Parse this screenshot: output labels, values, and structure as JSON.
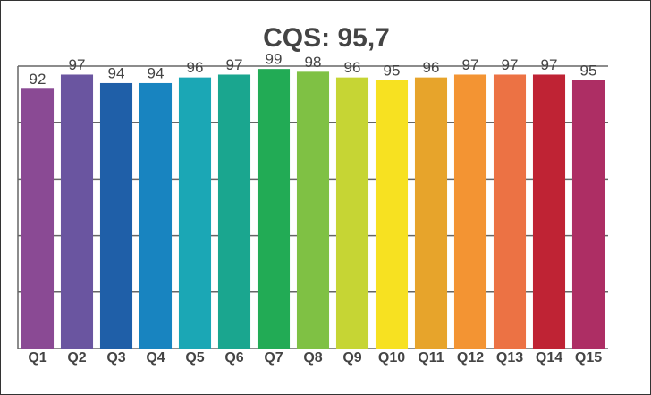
{
  "chart_data": {
    "type": "bar",
    "title": "CQS: 95,7",
    "categories": [
      "Q1",
      "Q2",
      "Q3",
      "Q4",
      "Q5",
      "Q6",
      "Q7",
      "Q8",
      "Q9",
      "Q10",
      "Q11",
      "Q12",
      "Q13",
      "Q14",
      "Q15"
    ],
    "values": [
      92,
      97,
      94,
      94,
      96,
      97,
      99,
      98,
      96,
      95,
      96,
      97,
      97,
      97,
      95
    ],
    "colors": [
      "#8a4a94",
      "#6a55a0",
      "#1f5fa8",
      "#1884c0",
      "#1ba7b5",
      "#1aa68f",
      "#22ab55",
      "#7fc144",
      "#c6d534",
      "#f7e121",
      "#e7a42b",
      "#f39433",
      "#ec7244",
      "#bf2334",
      "#ad2e64"
    ],
    "ylim": [
      0,
      100
    ],
    "yticks": [
      0,
      20,
      40,
      60,
      80,
      100
    ],
    "grid": true
  }
}
